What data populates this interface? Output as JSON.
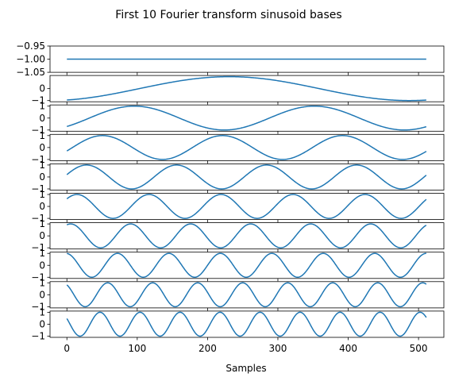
{
  "chart_data": {
    "type": "line",
    "title": "First 10 Fourier transform sinusoid bases",
    "xlabel": "Samples",
    "n_samples": 512,
    "xlim": [
      -24,
      536
    ],
    "x_ticks": [
      0,
      100,
      200,
      300,
      400,
      500
    ],
    "x_tick_labels": [
      "0",
      "100",
      "200",
      "300",
      "400",
      "500"
    ],
    "line_color": "#1f77b4",
    "grid": false,
    "series": [
      {
        "basis_index": 0,
        "function": "constant",
        "value": -1.0,
        "ylim": [
          -1.05,
          -0.95
        ],
        "y_ticks": [
          -0.95,
          -1.0,
          -1.05
        ],
        "y_tick_labels": [
          "−0.95",
          "−1.00",
          "−1.05"
        ]
      },
      {
        "basis_index": 1,
        "function": "cos",
        "frequency": 1.0,
        "phase": 3.45,
        "ylim": [
          -1.1,
          1.1
        ],
        "y_ticks": [
          0,
          -1
        ],
        "y_tick_labels": [
          "0",
          "−1"
        ]
      },
      {
        "basis_index": 2,
        "function": "cos",
        "frequency": 2.0,
        "phase": 3.93,
        "ylim": [
          -1.1,
          1.1
        ],
        "y_ticks": [
          1,
          0,
          -1
        ],
        "y_tick_labels": [
          "1",
          "0",
          "−1"
        ]
      },
      {
        "basis_index": 3,
        "function": "cos",
        "frequency": 3.0,
        "phase": 4.42,
        "ylim": [
          -1.1,
          1.1
        ],
        "y_ticks": [
          1,
          0,
          -1
        ],
        "y_tick_labels": [
          "1",
          "0",
          "−1"
        ]
      },
      {
        "basis_index": 4,
        "function": "cos",
        "frequency": 4.0,
        "phase": 4.91,
        "ylim": [
          -1.1,
          1.1
        ],
        "y_ticks": [
          1,
          0,
          -1
        ],
        "y_tick_labels": [
          "1",
          "0",
          "−1"
        ]
      },
      {
        "basis_index": 5,
        "function": "cos",
        "frequency": 5.0,
        "phase": 5.4,
        "ylim": [
          -1.1,
          1.1
        ],
        "y_ticks": [
          1,
          0,
          -1
        ],
        "y_tick_labels": [
          "1",
          "0",
          "−1"
        ]
      },
      {
        "basis_index": 6,
        "function": "cos",
        "frequency": 6.0,
        "phase": 5.89,
        "ylim": [
          -1.1,
          1.1
        ],
        "y_ticks": [
          1,
          0,
          -1
        ],
        "y_tick_labels": [
          "1",
          "0",
          "−1"
        ]
      },
      {
        "basis_index": 7,
        "function": "cos",
        "frequency": 7.0,
        "phase": 0.1,
        "ylim": [
          -1.1,
          1.1
        ],
        "y_ticks": [
          1,
          0,
          -1
        ],
        "y_tick_labels": [
          "1",
          "0",
          "−1"
        ]
      },
      {
        "basis_index": 8,
        "function": "cos",
        "frequency": 8.0,
        "phase": 0.59,
        "ylim": [
          -1.1,
          1.1
        ],
        "y_ticks": [
          1,
          0,
          -1
        ],
        "y_tick_labels": [
          "1",
          "0",
          "−1"
        ]
      },
      {
        "basis_index": 9,
        "function": "cos",
        "frequency": 9.0,
        "phase": 1.08,
        "ylim": [
          -1.1,
          1.1
        ],
        "y_ticks": [
          1,
          0,
          -1
        ],
        "y_tick_labels": [
          "1",
          "0",
          "−1"
        ]
      }
    ]
  }
}
